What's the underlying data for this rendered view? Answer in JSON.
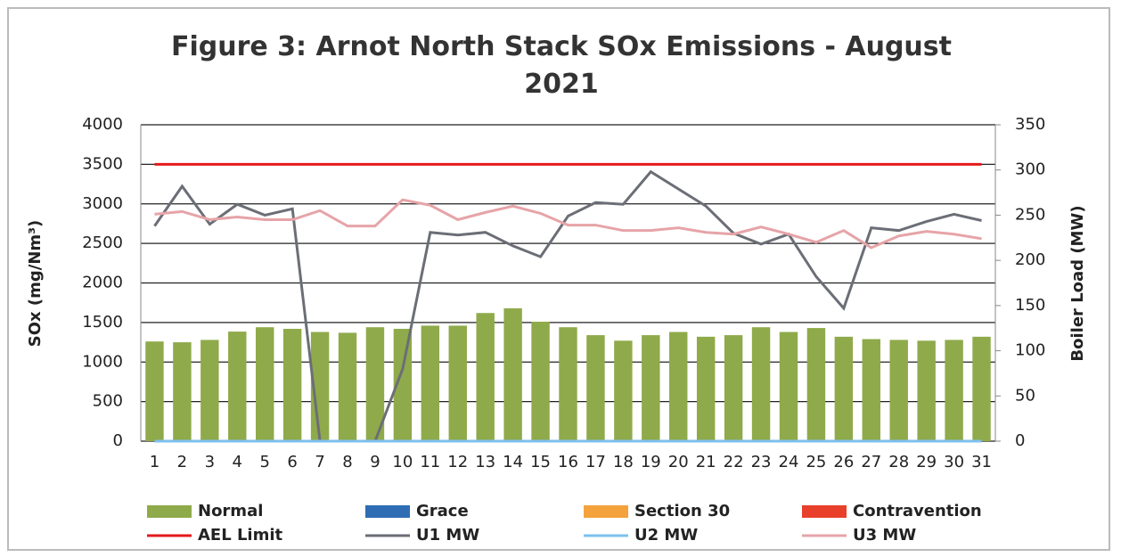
{
  "chart_data": {
    "type": "bar",
    "title": "Figure 3: Arnot North Stack SOx Emissions -  August 2021",
    "y_label": "SOx (mg/Nm³)",
    "y2_label": "Boiler Load (MW)",
    "categories": [
      "1",
      "2",
      "3",
      "4",
      "5",
      "6",
      "7",
      "8",
      "9",
      "10",
      "11",
      "12",
      "13",
      "14",
      "15",
      "16",
      "17",
      "18",
      "19",
      "20",
      "21",
      "22",
      "23",
      "24",
      "25",
      "26",
      "27",
      "28",
      "29",
      "30",
      "31"
    ],
    "series": [
      {
        "name": "Normal",
        "type": "bar",
        "color": "#8faa4a",
        "values": [
          1260,
          1250,
          1280,
          1385,
          1440,
          1420,
          1380,
          1370,
          1440,
          1420,
          1460,
          1460,
          1620,
          1680,
          1510,
          1440,
          1340,
          1270,
          1340,
          1380,
          1320,
          1340,
          1440,
          1380,
          1430,
          1320,
          1290,
          1280,
          1270,
          1280,
          1320
        ]
      },
      {
        "name": "Grace",
        "type": "bar",
        "color": "#2e6db4",
        "values": [
          0,
          0,
          0,
          0,
          0,
          0,
          0,
          0,
          0,
          0,
          0,
          0,
          0,
          0,
          0,
          0,
          0,
          0,
          0,
          0,
          0,
          0,
          0,
          0,
          0,
          0,
          0,
          0,
          0,
          0,
          0
        ]
      },
      {
        "name": "Section 30",
        "type": "bar",
        "color": "#f4a23c",
        "values": [
          0,
          0,
          0,
          0,
          0,
          0,
          0,
          0,
          0,
          0,
          0,
          0,
          0,
          0,
          0,
          0,
          0,
          0,
          0,
          0,
          0,
          0,
          0,
          0,
          0,
          0,
          0,
          0,
          0,
          0,
          0
        ]
      },
      {
        "name": "Contravention",
        "type": "bar",
        "color": "#e8402a",
        "values": [
          0,
          0,
          0,
          0,
          0,
          0,
          0,
          0,
          0,
          0,
          0,
          0,
          0,
          0,
          0,
          0,
          0,
          0,
          0,
          0,
          0,
          0,
          0,
          0,
          0,
          0,
          0,
          0,
          0,
          0,
          0
        ]
      },
      {
        "name": "AEL Limit",
        "type": "line",
        "color": "#e41a1c",
        "values": [
          3500,
          3500,
          3500,
          3500,
          3500,
          3500,
          3500,
          3500,
          3500,
          3500,
          3500,
          3500,
          3500,
          3500,
          3500,
          3500,
          3500,
          3500,
          3500,
          3500,
          3500,
          3500,
          3500,
          3500,
          3500,
          3500,
          3500,
          3500,
          3500,
          3500,
          3500
        ]
      },
      {
        "name": "U1 MW",
        "type": "line",
        "axis": "y2",
        "color": "#6b6e76",
        "values": [
          238,
          282,
          240,
          262,
          250,
          257,
          0,
          0,
          0,
          80,
          231,
          228,
          231,
          216,
          204,
          249,
          264,
          262,
          298,
          279,
          260,
          230,
          218,
          229,
          182,
          147,
          236,
          233,
          243,
          251,
          244
        ]
      },
      {
        "name": "U2 MW",
        "type": "line",
        "axis": "y2",
        "color": "#7ec0ee",
        "values": [
          0,
          0,
          0,
          0,
          0,
          0,
          0,
          0,
          0,
          0,
          0,
          0,
          0,
          0,
          0,
          0,
          0,
          0,
          0,
          0,
          0,
          0,
          0,
          0,
          0,
          0,
          0,
          0,
          0,
          0,
          0
        ]
      },
      {
        "name": "U3 MW",
        "type": "line",
        "axis": "y2",
        "color": "#e6a4a8",
        "values": [
          251,
          254,
          245,
          248,
          245,
          245,
          255,
          238,
          238,
          267,
          261,
          245,
          253,
          260,
          252,
          239,
          239,
          233,
          233,
          236,
          231,
          229,
          237,
          229,
          220,
          233,
          214,
          227,
          232,
          229,
          224
        ]
      }
    ],
    "ylim": [
      0,
      4000
    ],
    "yticks": [
      0,
      500,
      1000,
      1500,
      2000,
      2500,
      3000,
      3500,
      4000
    ],
    "y2lim": [
      0,
      350
    ],
    "y2ticks": [
      0,
      50,
      100,
      150,
      200,
      250,
      300,
      350
    ],
    "grid": true,
    "legend": "bottom"
  }
}
